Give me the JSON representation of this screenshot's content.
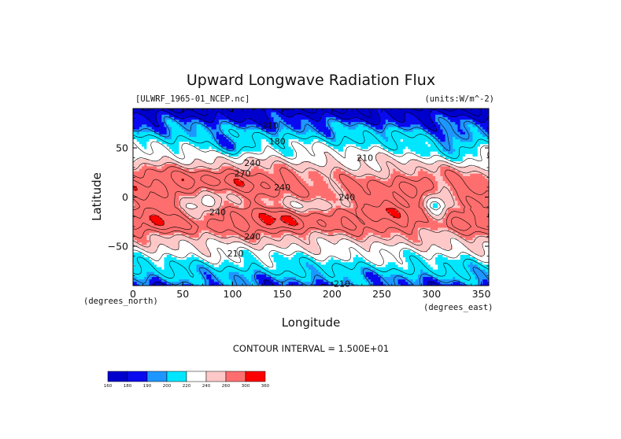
{
  "chart_data": {
    "type": "heatmap",
    "title": "Upward Longwave Radiation Flux",
    "dataset_label": "[ULWRF_1965-01_NCEP.nc]",
    "units_label": "(units:W/m^-2)",
    "xlabel": "Longitude",
    "ylabel": "Latitude",
    "x_unit_label": "(degrees_east)",
    "y_unit_label": "(degrees_north)",
    "xlim": [
      0,
      357.5
    ],
    "ylim": [
      -90,
      90
    ],
    "x_ticks": [
      "0",
      "50",
      "100",
      "150",
      "200",
      "250",
      "300",
      "350"
    ],
    "x_tick_values": [
      0,
      50,
      100,
      150,
      200,
      250,
      300,
      350
    ],
    "y_ticks": [
      "50",
      "0",
      "−50"
    ],
    "y_tick_values": [
      50,
      0,
      -50
    ],
    "contour_interval_text": "CONTOUR INTERVAL = 1.500E+01",
    "contour_labels": [
      {
        "text": "210",
        "lon": 138,
        "lat": 73
      },
      {
        "text": "180",
        "lon": 145,
        "lat": 57
      },
      {
        "text": "210",
        "lon": 233,
        "lat": 40
      },
      {
        "text": "240",
        "lon": 120,
        "lat": 35
      },
      {
        "text": "270",
        "lon": 110,
        "lat": 24
      },
      {
        "text": "240",
        "lon": 150,
        "lat": 10
      },
      {
        "text": "240",
        "lon": 215,
        "lat": 0
      },
      {
        "text": "240",
        "lon": 85,
        "lat": -15
      },
      {
        "text": "240",
        "lon": 120,
        "lat": -40
      },
      {
        "text": "210",
        "lon": 103,
        "lat": -57
      },
      {
        "text": "210",
        "lon": 210,
        "lat": -88
      }
    ],
    "colorbar": {
      "levels": [
        "160",
        "180",
        "190",
        "200",
        "220",
        "240",
        "260",
        "300",
        "360"
      ],
      "colors": [
        "#0000cc",
        "#0a0af0",
        "#1e96ff",
        "#00e6ff",
        "#ffffff",
        "#ffc8c8",
        "#ff6e6e",
        "#ff0000"
      ]
    }
  }
}
